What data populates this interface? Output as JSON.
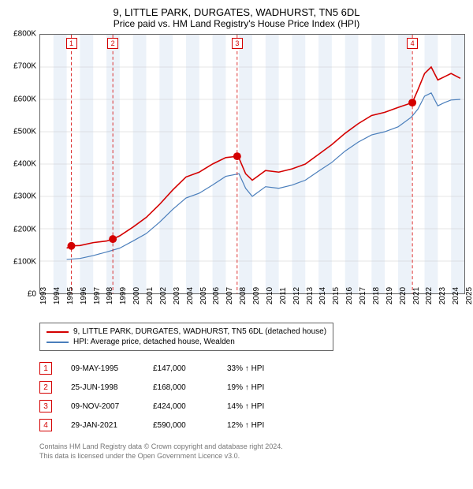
{
  "title": "9, LITTLE PARK, DURGATES, WADHURST, TN5 6DL",
  "subtitle": "Price paid vs. HM Land Registry's House Price Index (HPI)",
  "chart": {
    "type": "line",
    "x_axis": {
      "min": 1993,
      "max": 2025,
      "tick_step": 1,
      "labels": [
        "1993",
        "1994",
        "1995",
        "1996",
        "1997",
        "1998",
        "1999",
        "2000",
        "2001",
        "2002",
        "2003",
        "2004",
        "2005",
        "2006",
        "2007",
        "2008",
        "2009",
        "2010",
        "2011",
        "2012",
        "2013",
        "2014",
        "2015",
        "2016",
        "2017",
        "2018",
        "2019",
        "2020",
        "2021",
        "2022",
        "2023",
        "2024",
        "2025"
      ]
    },
    "y_axis": {
      "min": 0,
      "max": 800000,
      "tick_step": 100000,
      "labels": [
        "£0",
        "£100K",
        "£200K",
        "£300K",
        "£400K",
        "£500K",
        "£600K",
        "£700K",
        "£800K"
      ]
    },
    "alt_band_color": "#ecf2f9",
    "grid_color": "#cccccc",
    "background_color": "#ffffff",
    "series": [
      {
        "name": "price_paid",
        "label": "9, LITTLE PARK, DURGATES, WADHURST, TN5 6DL (detached house)",
        "color": "#d40000",
        "line_width": 1.6,
        "data": [
          [
            1995.0,
            140000
          ],
          [
            1995.35,
            147000
          ],
          [
            1996,
            148000
          ],
          [
            1997,
            157000
          ],
          [
            1998,
            162000
          ],
          [
            1998.48,
            168000
          ],
          [
            1999,
            178000
          ],
          [
            2000,
            205000
          ],
          [
            2001,
            235000
          ],
          [
            2002,
            275000
          ],
          [
            2003,
            320000
          ],
          [
            2004,
            360000
          ],
          [
            2005,
            375000
          ],
          [
            2006,
            400000
          ],
          [
            2007,
            420000
          ],
          [
            2007.86,
            424000
          ],
          [
            2008,
            418000
          ],
          [
            2008.5,
            370000
          ],
          [
            2009,
            350000
          ],
          [
            2010,
            380000
          ],
          [
            2011,
            375000
          ],
          [
            2012,
            385000
          ],
          [
            2013,
            400000
          ],
          [
            2014,
            430000
          ],
          [
            2015,
            460000
          ],
          [
            2016,
            495000
          ],
          [
            2017,
            525000
          ],
          [
            2018,
            550000
          ],
          [
            2019,
            560000
          ],
          [
            2020,
            575000
          ],
          [
            2021.08,
            590000
          ],
          [
            2021.5,
            630000
          ],
          [
            2022,
            680000
          ],
          [
            2022.5,
            700000
          ],
          [
            2023,
            660000
          ],
          [
            2023.5,
            670000
          ],
          [
            2024,
            680000
          ],
          [
            2024.7,
            665000
          ]
        ]
      },
      {
        "name": "hpi",
        "label": "HPI: Average price, detached house, Wealden",
        "color": "#4a7ebb",
        "line_width": 1.2,
        "data": [
          [
            1995.0,
            105000
          ],
          [
            1996,
            108000
          ],
          [
            1997,
            117000
          ],
          [
            1998,
            128000
          ],
          [
            1999,
            140000
          ],
          [
            2000,
            162000
          ],
          [
            2001,
            185000
          ],
          [
            2002,
            220000
          ],
          [
            2003,
            260000
          ],
          [
            2004,
            295000
          ],
          [
            2005,
            310000
          ],
          [
            2006,
            335000
          ],
          [
            2007,
            362000
          ],
          [
            2008,
            370000
          ],
          [
            2008.5,
            325000
          ],
          [
            2009,
            300000
          ],
          [
            2010,
            330000
          ],
          [
            2011,
            325000
          ],
          [
            2012,
            335000
          ],
          [
            2013,
            350000
          ],
          [
            2014,
            378000
          ],
          [
            2015,
            405000
          ],
          [
            2016,
            440000
          ],
          [
            2017,
            468000
          ],
          [
            2018,
            490000
          ],
          [
            2019,
            500000
          ],
          [
            2020,
            515000
          ],
          [
            2021,
            545000
          ],
          [
            2021.5,
            570000
          ],
          [
            2022,
            610000
          ],
          [
            2022.5,
            620000
          ],
          [
            2023,
            580000
          ],
          [
            2023.5,
            590000
          ],
          [
            2024,
            598000
          ],
          [
            2024.7,
            600000
          ]
        ]
      }
    ],
    "transactions": [
      {
        "n": "1",
        "year": 1995.35,
        "price": 147000,
        "date": "09-MAY-1995",
        "price_label": "£147,000",
        "pct_label": "33% ↑ HPI"
      },
      {
        "n": "2",
        "year": 1998.48,
        "price": 168000,
        "date": "25-JUN-1998",
        "price_label": "£168,000",
        "pct_label": "19% ↑ HPI"
      },
      {
        "n": "3",
        "year": 2007.86,
        "price": 424000,
        "date": "09-NOV-2007",
        "price_label": "£424,000",
        "pct_label": "14% ↑ HPI"
      },
      {
        "n": "4",
        "year": 2021.08,
        "price": 590000,
        "date": "29-JAN-2021",
        "price_label": "£590,000",
        "pct_label": "12% ↑ HPI"
      }
    ],
    "marker_color": "#d40000",
    "marker_size": 5,
    "vline_color": "#d40000",
    "vline_dash": "4,3"
  },
  "footer_line1": "Contains HM Land Registry data © Crown copyright and database right 2024.",
  "footer_line2": "This data is licensed under the Open Government Licence v3.0."
}
